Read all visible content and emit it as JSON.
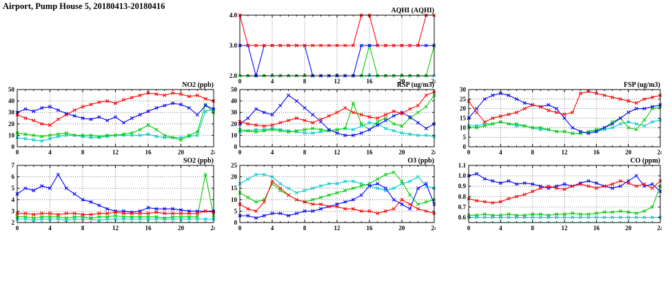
{
  "page": {
    "title": "Airport, Pump House 5, 20180413-20180416"
  },
  "colors": {
    "red": "#ff0000",
    "blue": "#0000ff",
    "green": "#00cc00",
    "cyan": "#00cccc"
  },
  "hours": [
    0,
    1,
    2,
    3,
    4,
    5,
    6,
    7,
    8,
    9,
    10,
    11,
    12,
    13,
    14,
    15,
    16,
    17,
    18,
    19,
    20,
    21,
    22,
    23,
    24
  ],
  "chart_data": [
    {
      "id": "aqhi",
      "type": "line",
      "title": "AQHI (AQHI)",
      "xlim": [
        0,
        24
      ],
      "xticks": [
        0,
        4,
        8,
        12,
        16,
        20,
        24
      ],
      "ylim": [
        2,
        4
      ],
      "yticks": [
        2,
        3,
        4
      ],
      "ytick_labels": [
        "2.0",
        "3.0",
        "4.0"
      ],
      "series": [
        {
          "name": "cyan",
          "color": "#00cccc",
          "values": [
            2,
            2,
            2,
            2,
            2,
            2,
            2,
            2,
            2,
            2,
            2,
            2,
            2,
            2,
            2,
            2,
            2,
            2,
            2,
            2,
            2,
            2,
            2,
            2,
            2
          ]
        },
        {
          "name": "green",
          "color": "#00cc00",
          "values": [
            2,
            2,
            2,
            2,
            2,
            2,
            2,
            2,
            2,
            2,
            2,
            2,
            2,
            2,
            2,
            2,
            3,
            2,
            2,
            2,
            2,
            2,
            2,
            2,
            3
          ]
        },
        {
          "name": "blue",
          "color": "#0000ff",
          "values": [
            3,
            3,
            2,
            3,
            3,
            3,
            3,
            3,
            3,
            2,
            2,
            2,
            2,
            2,
            2,
            3,
            3,
            3,
            3,
            3,
            3,
            3,
            3,
            3,
            3
          ]
        },
        {
          "name": "red",
          "color": "#ff0000",
          "values": [
            4,
            3,
            3,
            3,
            3,
            3,
            3,
            3,
            3,
            3,
            3,
            3,
            3,
            3,
            3,
            4,
            4,
            3,
            3,
            3,
            3,
            3,
            3,
            4,
            4
          ]
        }
      ]
    },
    {
      "id": "no2",
      "type": "line",
      "title": "NO2 (ppb)",
      "xlim": [
        0,
        24
      ],
      "xticks": [
        0,
        4,
        8,
        12,
        16,
        20,
        24
      ],
      "ylim": [
        0,
        50
      ],
      "yticks": [
        0,
        10,
        20,
        30,
        40,
        50
      ],
      "ytick_labels": [
        "0",
        "10",
        "20",
        "30",
        "40",
        "50"
      ],
      "series": [
        {
          "name": "cyan",
          "color": "#00cccc",
          "values": [
            8,
            7,
            6,
            5,
            7,
            9,
            10,
            10,
            9,
            8,
            8,
            9,
            10,
            10,
            10,
            10,
            11,
            9,
            8,
            8,
            8,
            9,
            10,
            31,
            33
          ]
        },
        {
          "name": "green",
          "color": "#00cc00",
          "values": [
            12,
            11,
            10,
            9,
            10,
            11,
            12,
            10,
            10,
            10,
            9,
            10,
            10,
            11,
            12,
            15,
            19,
            15,
            10,
            8,
            6,
            10,
            13,
            37,
            30
          ]
        },
        {
          "name": "blue",
          "color": "#0000ff",
          "values": [
            30,
            33,
            31,
            34,
            35,
            32,
            29,
            27,
            25,
            24,
            26,
            23,
            26,
            21,
            25,
            28,
            31,
            34,
            36,
            38,
            37,
            34,
            28,
            36,
            33
          ]
        },
        {
          "name": "red",
          "color": "#ff0000",
          "values": [
            28,
            25,
            23,
            20,
            19,
            24,
            28,
            32,
            35,
            37,
            39,
            40,
            38,
            41,
            43,
            45,
            47,
            46,
            45,
            47,
            46,
            44,
            45,
            42,
            40
          ]
        }
      ]
    },
    {
      "id": "rsp",
      "type": "line",
      "title": "RSP (ug/m3)",
      "xlim": [
        0,
        24
      ],
      "xticks": [
        0,
        4,
        8,
        12,
        16,
        20,
        24
      ],
      "ylim": [
        0,
        50
      ],
      "yticks": [
        0,
        10,
        20,
        30,
        40,
        50
      ],
      "ytick_labels": [
        "0",
        "10",
        "20",
        "30",
        "40",
        "50"
      ],
      "series": [
        {
          "name": "cyan",
          "color": "#00cccc",
          "values": [
            13,
            14,
            15,
            15,
            16,
            15,
            14,
            13,
            12,
            12,
            13,
            14,
            15,
            16,
            15,
            18,
            21,
            20,
            16,
            14,
            12,
            11,
            10,
            10,
            9
          ]
        },
        {
          "name": "green",
          "color": "#00cc00",
          "values": [
            15,
            14,
            13,
            14,
            15,
            14,
            13,
            14,
            15,
            16,
            15,
            14,
            15,
            16,
            38,
            20,
            15,
            22,
            25,
            20,
            18,
            25,
            30,
            35,
            45
          ]
        },
        {
          "name": "blue",
          "color": "#0000ff",
          "values": [
            20,
            25,
            33,
            30,
            28,
            36,
            45,
            40,
            34,
            28,
            22,
            15,
            12,
            10,
            10,
            12,
            15,
            19,
            23,
            27,
            30,
            26,
            21,
            16,
            20
          ]
        },
        {
          "name": "red",
          "color": "#ff0000",
          "values": [
            22,
            20,
            19,
            18,
            19,
            21,
            23,
            25,
            23,
            21,
            24,
            27,
            30,
            34,
            30,
            28,
            26,
            25,
            28,
            31,
            29,
            33,
            36,
            45,
            48
          ]
        }
      ]
    },
    {
      "id": "fsp",
      "type": "line",
      "title": "FSP (ug/m3)",
      "xlim": [
        0,
        24
      ],
      "xticks": [
        0,
        4,
        8,
        12,
        16,
        20,
        24
      ],
      "ylim": [
        0,
        30
      ],
      "yticks": [
        0,
        5,
        10,
        15,
        20,
        25,
        30
      ],
      "ytick_labels": [
        "0",
        "5",
        "10",
        "15",
        "20",
        "25",
        "30"
      ],
      "series": [
        {
          "name": "cyan",
          "color": "#00cccc",
          "values": [
            11,
            11,
            12,
            12,
            13,
            12,
            11,
            11,
            10,
            9,
            9,
            8,
            8,
            7,
            7,
            8,
            8,
            9,
            10,
            12,
            13,
            12,
            11,
            13,
            14
          ]
        },
        {
          "name": "green",
          "color": "#00cc00",
          "values": [
            10,
            10,
            11,
            12,
            13,
            12,
            12,
            11,
            10,
            10,
            9,
            8,
            8,
            7,
            7,
            8,
            9,
            10,
            13,
            15,
            10,
            9,
            14,
            20,
            21
          ]
        },
        {
          "name": "blue",
          "color": "#0000ff",
          "values": [
            15,
            20,
            25,
            27,
            28,
            27,
            25,
            23,
            22,
            21,
            22,
            20,
            15,
            10,
            8,
            7,
            8,
            10,
            12,
            15,
            18,
            20,
            20,
            21,
            22
          ]
        },
        {
          "name": "red",
          "color": "#ff0000",
          "values": [
            24,
            18,
            13,
            15,
            16,
            17,
            18,
            20,
            22,
            21,
            19,
            18,
            17,
            18,
            28,
            29,
            28,
            27,
            26,
            25,
            24,
            23,
            25,
            26,
            27
          ]
        }
      ]
    },
    {
      "id": "so2",
      "type": "line",
      "title": "SO2 (ppb)",
      "xlim": [
        0,
        24
      ],
      "xticks": [
        0,
        4,
        8,
        12,
        16,
        20,
        24
      ],
      "ylim": [
        2,
        7
      ],
      "yticks": [
        2,
        3,
        4,
        5,
        6,
        7
      ],
      "ytick_labels": [
        "2",
        "3",
        "4",
        "5",
        "6",
        "7"
      ],
      "series": [
        {
          "name": "cyan",
          "color": "#00cccc",
          "values": [
            2.3,
            2.3,
            2.2,
            2.3,
            2.3,
            2.3,
            2.2,
            2.3,
            2.3,
            2.3,
            2.2,
            2.3,
            2.3,
            2.3,
            2.3,
            2.3,
            2.3,
            2.3,
            2.3,
            2.3,
            2.3,
            2.3,
            2.3,
            2.3,
            2.3
          ]
        },
        {
          "name": "green",
          "color": "#00cc00",
          "values": [
            2.5,
            2.5,
            2.4,
            2.5,
            2.5,
            2.5,
            2.4,
            2.5,
            2.5,
            2.4,
            2.5,
            2.5,
            2.6,
            2.5,
            2.5,
            2.5,
            2.5,
            2.5,
            2.4,
            2.5,
            2.5,
            2.5,
            2.5,
            6.2,
            2.6
          ]
        },
        {
          "name": "blue",
          "color": "#0000ff",
          "values": [
            4.5,
            5.0,
            4.8,
            5.2,
            5.0,
            6.2,
            5.0,
            4.5,
            4.0,
            3.8,
            3.5,
            3.2,
            3.0,
            3.0,
            2.9,
            3.0,
            3.3,
            3.2,
            3.2,
            3.2,
            3.1,
            3.0,
            3.0,
            3.0,
            3.0
          ]
        },
        {
          "name": "red",
          "color": "#ff0000",
          "values": [
            2.8,
            2.8,
            2.7,
            2.8,
            2.8,
            2.7,
            2.8,
            2.8,
            2.7,
            2.7,
            2.8,
            2.8,
            2.9,
            2.8,
            2.8,
            2.8,
            2.8,
            2.9,
            2.8,
            2.8,
            2.8,
            2.8,
            2.8,
            3.0,
            2.9
          ]
        }
      ]
    },
    {
      "id": "o3",
      "type": "line",
      "title": "O3 (ppb)",
      "xlim": [
        0,
        24
      ],
      "xticks": [
        0,
        4,
        8,
        12,
        16,
        20,
        24
      ],
      "ylim": [
        0,
        25
      ],
      "yticks": [
        0,
        5,
        10,
        15,
        20,
        25
      ],
      "ytick_labels": [
        "0",
        "5",
        "10",
        "15",
        "20",
        "25"
      ],
      "series": [
        {
          "name": "cyan",
          "color": "#00cccc",
          "values": [
            17,
            19,
            21,
            21,
            20,
            17,
            15,
            13,
            14,
            15,
            16,
            17,
            17,
            18,
            18,
            17,
            16,
            15,
            14,
            15,
            17,
            18,
            20,
            16,
            15
          ]
        },
        {
          "name": "green",
          "color": "#00cc00",
          "values": [
            13,
            11,
            9,
            10,
            17,
            14,
            12,
            10,
            9,
            10,
            11,
            12,
            13,
            14,
            15,
            16,
            17,
            19,
            21,
            22,
            18,
            12,
            8,
            9,
            10
          ]
        },
        {
          "name": "blue",
          "color": "#0000ff",
          "values": [
            3,
            3,
            2,
            3,
            4,
            4,
            3,
            4,
            5,
            5,
            6,
            7,
            8,
            9,
            10,
            12,
            16,
            17,
            15,
            10,
            8,
            6,
            15,
            17,
            8
          ]
        },
        {
          "name": "red",
          "color": "#ff0000",
          "values": [
            8,
            6,
            5,
            9,
            18,
            15,
            12,
            10,
            9,
            8,
            8,
            7,
            7,
            6,
            6,
            5,
            5,
            4,
            5,
            6,
            10,
            8,
            6,
            5,
            4
          ]
        }
      ]
    },
    {
      "id": "co",
      "type": "line",
      "title": "CO (ppm)",
      "xlim": [
        0,
        24
      ],
      "xticks": [
        0,
        4,
        8,
        12,
        16,
        20,
        24
      ],
      "ylim": [
        0.55,
        1.1
      ],
      "yticks": [
        0.6,
        0.7,
        0.8,
        0.9,
        1.0,
        1.1
      ],
      "ytick_labels": [
        "0.6",
        "0.7",
        "0.8",
        "0.9",
        "1.0",
        "1.1"
      ],
      "series": [
        {
          "name": "cyan",
          "color": "#00cccc",
          "values": [
            0.6,
            0.6,
            0.6,
            0.6,
            0.6,
            0.6,
            0.6,
            0.6,
            0.6,
            0.6,
            0.6,
            0.6,
            0.6,
            0.6,
            0.6,
            0.6,
            0.6,
            0.6,
            0.6,
            0.6,
            0.6,
            0.6,
            0.6,
            0.6,
            0.6
          ]
        },
        {
          "name": "green",
          "color": "#00cc00",
          "values": [
            0.62,
            0.62,
            0.63,
            0.62,
            0.62,
            0.63,
            0.62,
            0.62,
            0.63,
            0.63,
            0.62,
            0.63,
            0.63,
            0.64,
            0.63,
            0.63,
            0.64,
            0.65,
            0.65,
            0.66,
            0.65,
            0.64,
            0.66,
            0.7,
            0.9
          ]
        },
        {
          "name": "blue",
          "color": "#0000ff",
          "values": [
            1.0,
            1.02,
            0.97,
            0.95,
            0.93,
            0.95,
            0.92,
            0.93,
            0.92,
            0.9,
            0.88,
            0.9,
            0.92,
            0.9,
            0.93,
            0.95,
            0.93,
            0.9,
            0.88,
            0.9,
            0.95,
            1.0,
            0.9,
            0.92,
            0.85
          ]
        },
        {
          "name": "red",
          "color": "#ff0000",
          "values": [
            0.78,
            0.76,
            0.75,
            0.74,
            0.75,
            0.78,
            0.8,
            0.82,
            0.85,
            0.88,
            0.9,
            0.88,
            0.87,
            0.9,
            0.92,
            0.9,
            0.88,
            0.9,
            0.92,
            0.95,
            0.93,
            0.9,
            0.92,
            0.88,
            0.95
          ]
        }
      ]
    }
  ]
}
